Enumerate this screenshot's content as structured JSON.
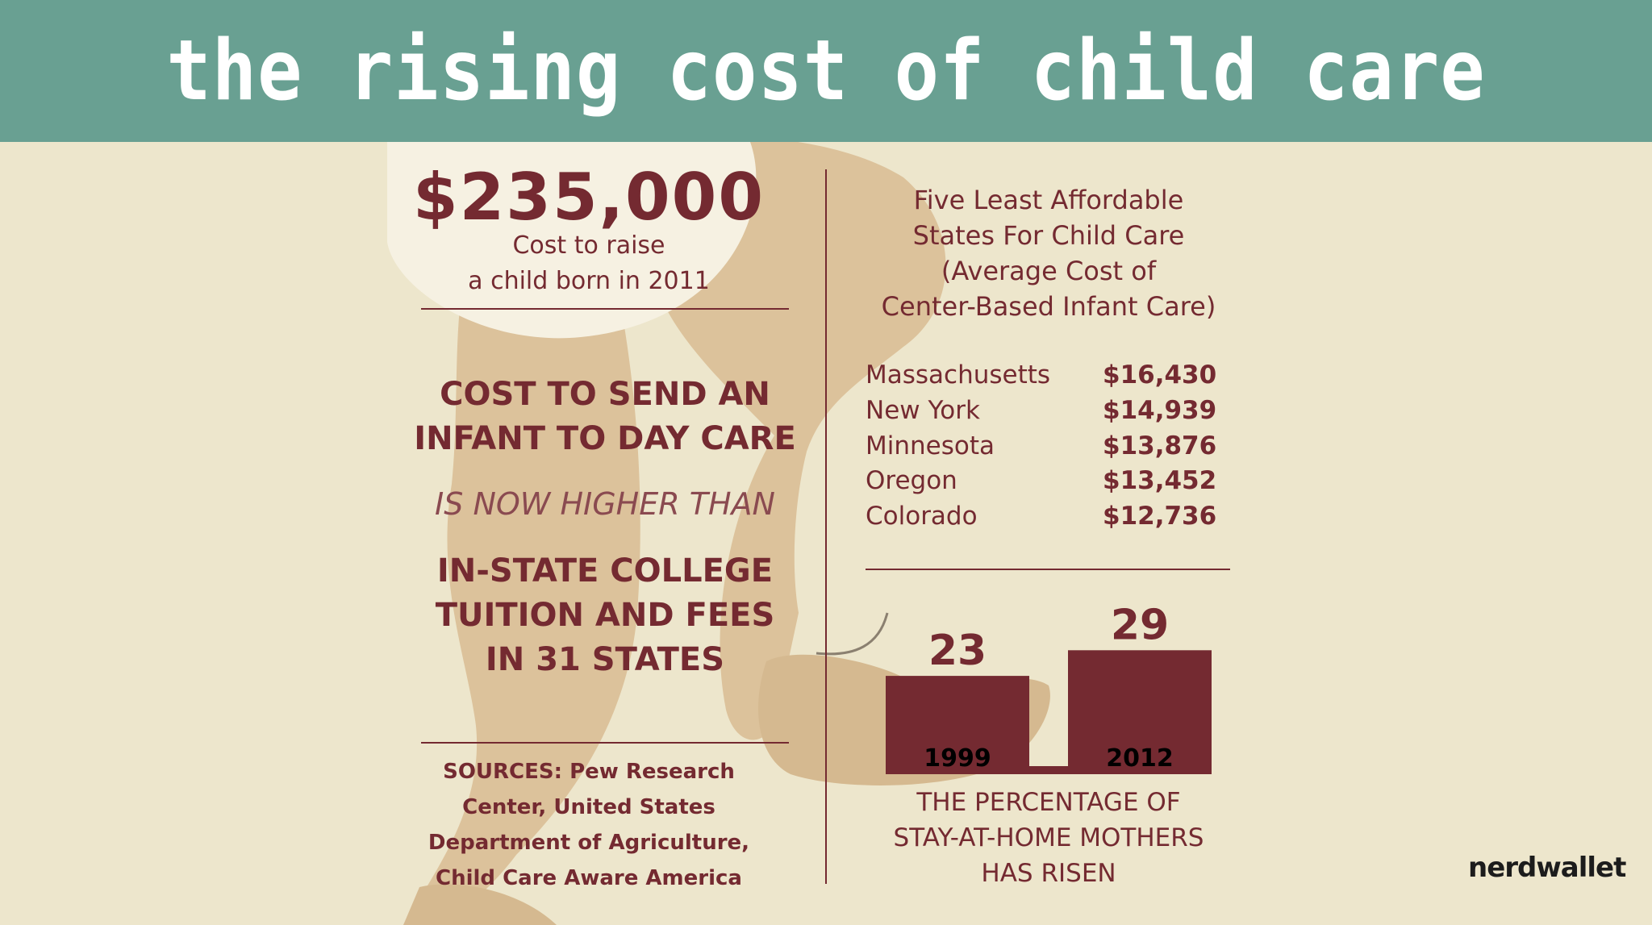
{
  "colors": {
    "header_bg": "#69a092",
    "background": "#ede6cc",
    "accent": "#742a31",
    "skin": "#dcc29b",
    "bib": "#f6f1e2"
  },
  "header": {
    "title": "the rising cost of child care"
  },
  "cost_to_raise": {
    "amount": "$235,000",
    "caption_line1": "Cost to raise",
    "caption_line2": "a child born in 2011"
  },
  "comparison": {
    "line1": "COST TO SEND AN",
    "line2": "INFANT TO DAY CARE",
    "connector": "IS NOW HIGHER THAN",
    "line3": "IN-STATE COLLEGE",
    "line4": "TUITION AND FEES",
    "line5": "IN 31 STATES"
  },
  "sources": {
    "line1": "SOURCES: Pew Research",
    "line2": "Center, United States",
    "line3": "Department of Agriculture,",
    "line4": "Child Care Aware America"
  },
  "states": {
    "title_line1": "Five Least Affordable",
    "title_line2": "States For Child Care",
    "title_line3": "(Average Cost of",
    "title_line4": "Center-Based Infant Care)",
    "rows": [
      {
        "state": "Massachusetts",
        "cost": "$16,430"
      },
      {
        "state": "New York",
        "cost": "$14,939"
      },
      {
        "state": "Minnesota",
        "cost": "$13,876"
      },
      {
        "state": "Oregon",
        "cost": "$13,452"
      },
      {
        "state": "Colorado",
        "cost": "$12,736"
      }
    ]
  },
  "chart_data": {
    "type": "bar",
    "categories": [
      "1999",
      "2012"
    ],
    "values": [
      23,
      29
    ],
    "value_labels": [
      "23",
      "29"
    ],
    "caption_line1": "THE PERCENTAGE OF",
    "caption_line2": "STAY-AT-HOME MOTHERS",
    "caption_line3": "HAS RISEN"
  },
  "footer": {
    "logo": "nerdwallet"
  }
}
